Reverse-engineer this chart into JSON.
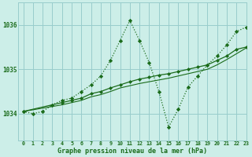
{
  "title": "Graphe pression niveau de la mer (hPa)",
  "bg_color": "#cceee8",
  "grid_color": "#99cccc",
  "line_color": "#1a6b1a",
  "xlim": [
    -0.5,
    23
  ],
  "ylim": [
    1033.4,
    1036.5
  ],
  "yticks": [
    1034,
    1035,
    1036
  ],
  "xticks": [
    0,
    1,
    2,
    3,
    4,
    5,
    6,
    7,
    8,
    9,
    10,
    11,
    12,
    13,
    14,
    15,
    16,
    17,
    18,
    19,
    20,
    21,
    22,
    23
  ],
  "line1_x": [
    0,
    1,
    2,
    3,
    4,
    5,
    6,
    7,
    8,
    9,
    10,
    11,
    12,
    13,
    14,
    15,
    16,
    17,
    18,
    19,
    20,
    21,
    22,
    23
  ],
  "line1_y": [
    1034.05,
    1034.0,
    1034.05,
    1034.2,
    1034.3,
    1034.35,
    1034.5,
    1034.65,
    1034.85,
    1035.2,
    1035.65,
    1036.1,
    1035.65,
    1035.15,
    1034.5,
    1033.7,
    1034.1,
    1034.6,
    1034.85,
    1035.1,
    1035.3,
    1035.55,
    1035.85,
    1035.95
  ],
  "line2_x": [
    0,
    4,
    5,
    6,
    7,
    8,
    9,
    10,
    11,
    12,
    13,
    14,
    15,
    16,
    17,
    18,
    19,
    20,
    21,
    22,
    23
  ],
  "line2_y": [
    1034.05,
    1034.25,
    1034.3,
    1034.35,
    1034.45,
    1034.5,
    1034.58,
    1034.65,
    1034.72,
    1034.78,
    1034.82,
    1034.87,
    1034.9,
    1034.95,
    1035.0,
    1035.05,
    1035.1,
    1035.2,
    1035.3,
    1035.45,
    1035.5
  ],
  "line3_x": [
    0,
    4,
    5,
    6,
    7,
    8,
    9,
    10,
    11,
    12,
    13,
    14,
    15,
    16,
    17,
    18,
    19,
    20,
    21,
    22,
    23
  ],
  "line3_y": [
    1034.05,
    1034.2,
    1034.25,
    1034.3,
    1034.38,
    1034.43,
    1034.5,
    1034.58,
    1034.63,
    1034.68,
    1034.72,
    1034.76,
    1034.8,
    1034.85,
    1034.9,
    1034.95,
    1035.0,
    1035.1,
    1035.22,
    1035.35,
    1035.48
  ]
}
